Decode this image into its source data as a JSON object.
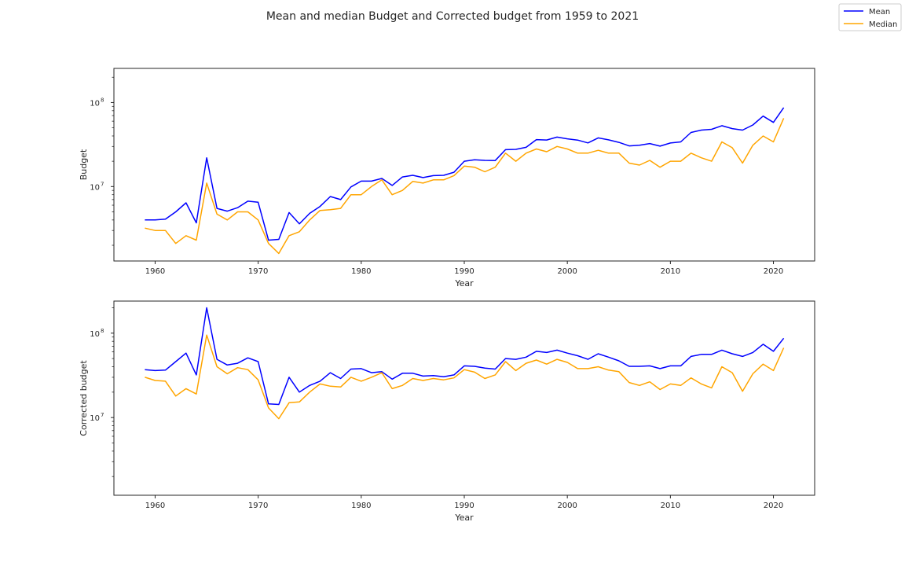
{
  "figure": {
    "suptitle": "Mean and median Budget and Corrected budget from 1959 to 2021"
  },
  "legend": {
    "placement": "top-right",
    "entries": [
      {
        "label": "Mean",
        "color": "#0000ff"
      },
      {
        "label": "Median",
        "color": "#ffa500"
      }
    ]
  },
  "chart_data": [
    {
      "type": "line",
      "xlabel": "Year",
      "ylabel": "Budget",
      "yscale": "log",
      "xlim": [
        1956,
        2024
      ],
      "ylim": [
        1300000,
        255000000
      ],
      "xticks": [
        1960,
        1970,
        1980,
        1990,
        2000,
        2010,
        2020
      ],
      "yticks": [
        {
          "value": 10000000,
          "base": "10",
          "exp": "7"
        },
        {
          "value": 100000000,
          "base": "10",
          "exp": "8"
        }
      ],
      "grid": false,
      "x": [
        1959,
        1960,
        1961,
        1962,
        1963,
        1964,
        1965,
        1966,
        1967,
        1968,
        1969,
        1970,
        1971,
        1972,
        1973,
        1974,
        1975,
        1976,
        1977,
        1978,
        1979,
        1980,
        1981,
        1982,
        1983,
        1984,
        1985,
        1986,
        1987,
        1988,
        1989,
        1990,
        1991,
        1992,
        1993,
        1994,
        1995,
        1996,
        1997,
        1998,
        1999,
        2000,
        2001,
        2002,
        2003,
        2004,
        2005,
        2006,
        2007,
        2008,
        2009,
        2010,
        2011,
        2012,
        2013,
        2014,
        2015,
        2016,
        2017,
        2018,
        2019,
        2020,
        2021
      ],
      "series": [
        {
          "name": "Mean",
          "color": "#0000ff",
          "values": [
            4000000,
            4000000,
            4100000,
            5000000,
            6400000,
            3700000,
            22000000,
            5500000,
            5100000,
            5600000,
            6700000,
            6500000,
            2300000,
            2350000,
            4900000,
            3600000,
            4800000,
            5800000,
            7600000,
            7000000,
            9900000,
            11600000,
            11600000,
            12500000,
            10300000,
            13000000,
            13600000,
            12800000,
            13500000,
            13600000,
            14800000,
            20000000,
            20800000,
            20500000,
            20400000,
            27500000,
            27700000,
            29300000,
            36200000,
            35800000,
            38800000,
            37000000,
            35700000,
            33100000,
            38000000,
            36000000,
            33600000,
            30500000,
            31000000,
            32500000,
            30300000,
            33000000,
            34000000,
            44000000,
            47000000,
            48000000,
            53000000,
            49000000,
            47000000,
            54000000,
            69000000,
            58000000,
            87000000
          ]
        },
        {
          "name": "Median",
          "color": "#ffa500",
          "values": [
            3200000,
            3000000,
            3000000,
            2100000,
            2600000,
            2300000,
            11000000,
            4700000,
            4000000,
            5000000,
            5000000,
            4000000,
            2100000,
            1600000,
            2600000,
            2900000,
            4000000,
            5200000,
            5300000,
            5500000,
            8000000,
            8000000,
            10000000,
            12000000,
            8000000,
            9000000,
            11500000,
            11000000,
            12000000,
            12000000,
            13500000,
            17500000,
            17000000,
            15000000,
            17000000,
            25000000,
            20000000,
            25000000,
            28000000,
            26000000,
            30000000,
            28000000,
            25000000,
            25000000,
            27000000,
            25000000,
            25000000,
            19000000,
            18000000,
            20500000,
            17000000,
            20000000,
            20000000,
            25000000,
            22000000,
            20000000,
            34000000,
            29000000,
            19000000,
            31000000,
            40000000,
            34000000,
            65000000
          ]
        }
      ]
    },
    {
      "type": "line",
      "xlabel": "Year",
      "ylabel": "Corrected budget",
      "yscale": "log",
      "xlim": [
        1956,
        2024
      ],
      "ylim": [
        1200000,
        240000000
      ],
      "xticks": [
        1960,
        1970,
        1980,
        1990,
        2000,
        2010,
        2020
      ],
      "yticks": [
        {
          "value": 10000000,
          "base": "10",
          "exp": "7"
        },
        {
          "value": 100000000,
          "base": "10",
          "exp": "8"
        }
      ],
      "grid": false,
      "x": [
        1959,
        1960,
        1961,
        1962,
        1963,
        1964,
        1965,
        1966,
        1967,
        1968,
        1969,
        1970,
        1971,
        1972,
        1973,
        1974,
        1975,
        1976,
        1977,
        1978,
        1979,
        1980,
        1981,
        1982,
        1983,
        1984,
        1985,
        1986,
        1987,
        1988,
        1989,
        1990,
        1991,
        1992,
        1993,
        1994,
        1995,
        1996,
        1997,
        1998,
        1999,
        2000,
        2001,
        2002,
        2003,
        2004,
        2005,
        2006,
        2007,
        2008,
        2009,
        2010,
        2011,
        2012,
        2013,
        2014,
        2015,
        2016,
        2017,
        2018,
        2019,
        2020,
        2021
      ],
      "series": [
        {
          "name": "Mean",
          "color": "#0000ff",
          "values": [
            37000000,
            36000000,
            36500000,
            46000000,
            58000000,
            32000000,
            200000000,
            49000000,
            42000000,
            44000000,
            51000000,
            46000000,
            14500000,
            14300000,
            30000000,
            20000000,
            24000000,
            27000000,
            34000000,
            29000000,
            37500000,
            38000000,
            34000000,
            35000000,
            28500000,
            33500000,
            33500000,
            31000000,
            31500000,
            30500000,
            32000000,
            41000000,
            40500000,
            38500000,
            37500000,
            50000000,
            49000000,
            52000000,
            61000000,
            59000000,
            63000000,
            58000000,
            54000000,
            49000000,
            57000000,
            52000000,
            47000000,
            40500000,
            40500000,
            41000000,
            38000000,
            41000000,
            41000000,
            53000000,
            56000000,
            56000000,
            63000000,
            57000000,
            53000000,
            59000000,
            74000000,
            61000000,
            87000000
          ]
        },
        {
          "name": "Median",
          "color": "#ffa500",
          "values": [
            30000000,
            27500000,
            27000000,
            18000000,
            22000000,
            19000000,
            95000000,
            40000000,
            33000000,
            39000000,
            37000000,
            28000000,
            13000000,
            9700000,
            15000000,
            15300000,
            20000000,
            25000000,
            23500000,
            23000000,
            30000000,
            27000000,
            30000000,
            34000000,
            22000000,
            24000000,
            29000000,
            27500000,
            29000000,
            28000000,
            29500000,
            37000000,
            34500000,
            29000000,
            32000000,
            46000000,
            36000000,
            44000000,
            48000000,
            43000000,
            49000000,
            45000000,
            38000000,
            38000000,
            40000000,
            36500000,
            35000000,
            26000000,
            24000000,
            26500000,
            21500000,
            25000000,
            24000000,
            29500000,
            25000000,
            22500000,
            40000000,
            34000000,
            20500000,
            33000000,
            43000000,
            36000000,
            67000000
          ]
        }
      ]
    }
  ]
}
